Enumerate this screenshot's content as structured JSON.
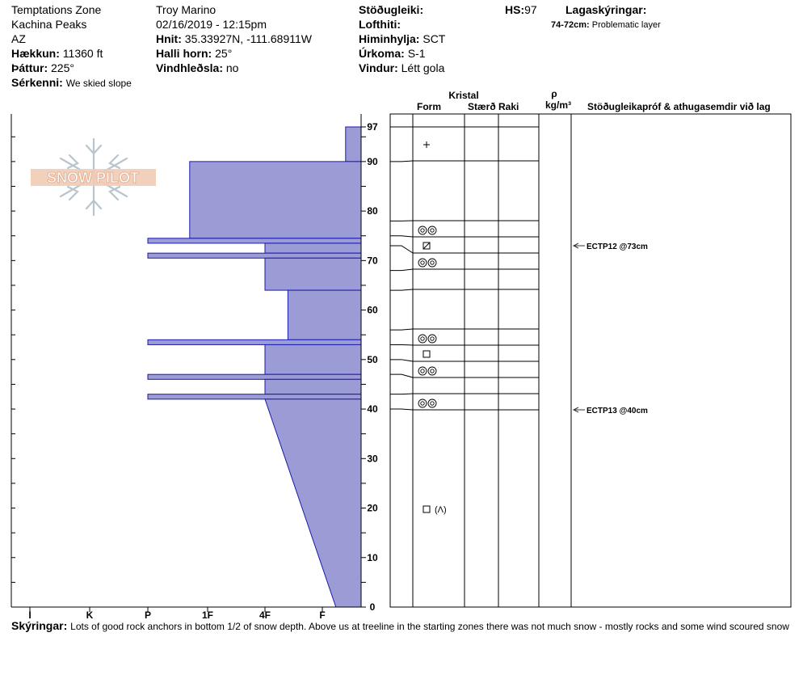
{
  "header": {
    "location": "Temptations Zone",
    "range": "Kachina Peaks",
    "state": "AZ",
    "elevation_label": "Hækkun:",
    "elevation_value": "11360 ft",
    "aspect_label": "Þáttur:",
    "aspect_value": "225°",
    "features_label": "Sérkenni:",
    "features_value": "We skied slope",
    "observer": "Troy Marino",
    "datetime": "02/16/2019 - 12:15pm",
    "coords_label": "Hnit:",
    "coords_value": "35.33927N, -111.68911W",
    "slope_label": "Halli horn:",
    "slope_value": "25°",
    "wind_loading_label": "Vindhleðsla:",
    "wind_loading_value": "no",
    "stability_label": "Stöðugleiki:",
    "air_temp_label": "Lofthiti:",
    "sky_label": "Himinhylja:",
    "sky_value": "SCT",
    "precip_label": "Úrkoma:",
    "precip_value": "S-1",
    "wind_label": "Vindur:",
    "wind_value": "Létt gola",
    "hs_label": "HS:",
    "hs_value": "97",
    "layer_notes_label": "Lagaskýringar:",
    "layer_note_range": "74-72cm:",
    "layer_note_text": "Problematic layer"
  },
  "logo": {
    "text": "SNOW PILOT"
  },
  "columns": {
    "crystal": "Kristal",
    "form": "Form",
    "size": "Stærð",
    "moisture": "Raki",
    "rho": "ρ",
    "density_unit": "kg/m³",
    "stability_tests": "Stöðugleikapróf & athugasemdir við lag"
  },
  "footer": {
    "notes_label": "Skýringar:",
    "notes_text": "Lots of good rock anchors in bottom 1/2 of snow depth. Above us at treeline in the starting zones there was not much snow - mostly rocks and some wind scoured snow"
  },
  "chart_data": {
    "type": "area",
    "title": "",
    "xlabel": "",
    "ylabel": "",
    "y_unit": "cm",
    "ylim": [
      0,
      97
    ],
    "y_ticks": [
      "0",
      "10",
      "20",
      "30",
      "40",
      "50",
      "60",
      "70",
      "80",
      "90",
      "97"
    ],
    "hardness_scale": [
      "I",
      "K",
      "P",
      "1F",
      "4F",
      "F"
    ],
    "hardness_note": "hardness index: F=1, 4F=2, 1F=3, P=4, K=5, I=6",
    "fill_color": "#9b9bd6",
    "edge_color": "#1a1aaa",
    "hardness_profile": [
      {
        "top": 97,
        "bottom": 90,
        "hardness": 0.4
      },
      {
        "top": 90,
        "bottom": 74.5,
        "hardness": 3.3
      },
      {
        "top": 74.5,
        "bottom": 73.5,
        "hardness": 4
      },
      {
        "top": 73.5,
        "bottom": 71.5,
        "hardness": 2
      },
      {
        "top": 71.5,
        "bottom": 70.5,
        "hardness": 4
      },
      {
        "top": 70.5,
        "bottom": 64,
        "hardness": 2
      },
      {
        "top": 64,
        "bottom": 54,
        "hardness": 1.6
      },
      {
        "top": 54,
        "bottom": 53,
        "hardness": 4
      },
      {
        "top": 53,
        "bottom": 47,
        "hardness": 2
      },
      {
        "top": 47,
        "bottom": 46,
        "hardness": 4
      },
      {
        "top": 46,
        "bottom": 43,
        "hardness": 2
      },
      {
        "top": 43,
        "bottom": 42,
        "hardness": 4
      },
      {
        "top": 42,
        "bottom": 0,
        "hardness_top": 2,
        "hardness_bottom": 0.65
      }
    ],
    "layer_boundaries": [
      97,
      90,
      78,
      75,
      73,
      71,
      68,
      64,
      56,
      53,
      50,
      47,
      43,
      40
    ],
    "grain_forms": [
      {
        "height": 93,
        "symbol": "+",
        "label": ""
      },
      {
        "height": 76,
        "symbol": "◎◎",
        "label": ""
      },
      {
        "height": 73,
        "symbol": "⊠",
        "label": ""
      },
      {
        "height": 70,
        "symbol": "◎◎",
        "label": ""
      },
      {
        "height": 54.5,
        "symbol": "◎◎",
        "label": ""
      },
      {
        "height": 51.5,
        "symbol": "□",
        "label": ""
      },
      {
        "height": 48,
        "symbol": "◎◎",
        "label": ""
      },
      {
        "height": 41.5,
        "symbol": "◎◎",
        "label": ""
      },
      {
        "height": 20,
        "symbol": "□",
        "label": "(Λ)"
      }
    ],
    "stability_tests": [
      {
        "height": 73,
        "result": "ECTP12 @73cm"
      },
      {
        "height": 40,
        "result": "ECTP13 @40cm"
      }
    ]
  }
}
